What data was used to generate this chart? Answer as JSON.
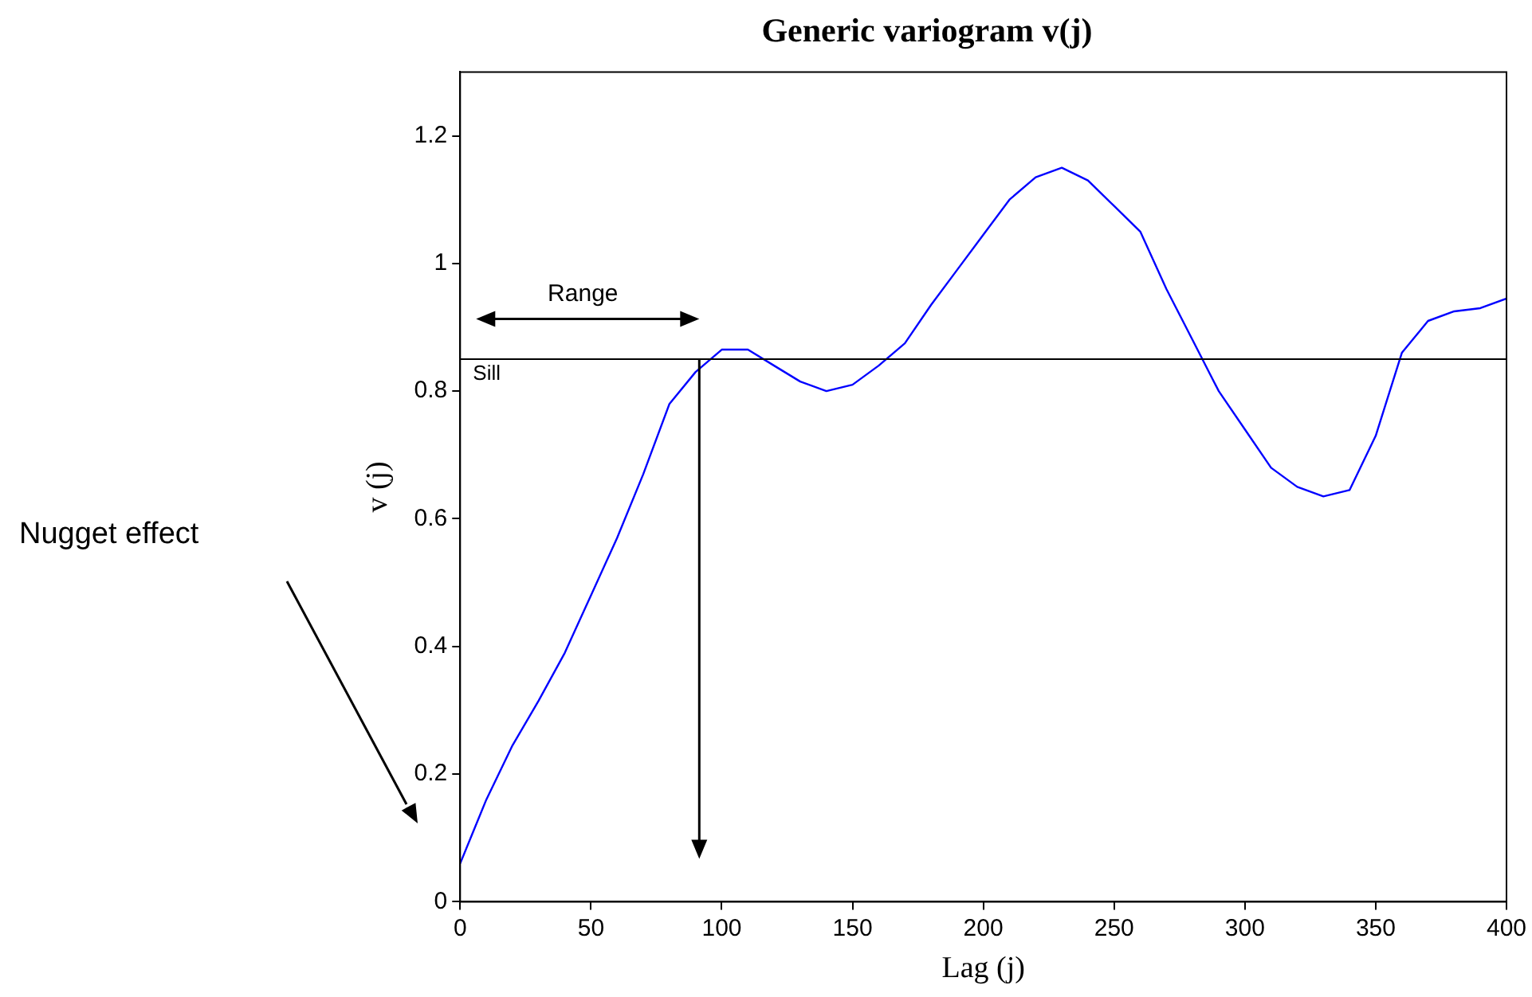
{
  "chart_data": {
    "type": "line",
    "title": "Generic variogram v(j)",
    "xlabel": "Lag (j)",
    "ylabel": "v (j)",
    "x": [
      0,
      5,
      10,
      20,
      30,
      40,
      50,
      60,
      70,
      80,
      90,
      100,
      110,
      120,
      130,
      140,
      150,
      160,
      170,
      180,
      190,
      200,
      210,
      220,
      230,
      240,
      250,
      260,
      270,
      280,
      290,
      300,
      310,
      320,
      330,
      340,
      350,
      360,
      370,
      380,
      390,
      400
    ],
    "series": [
      {
        "color": "#0000ff",
        "values": [
          0.06,
          0.11,
          0.16,
          0.245,
          0.315,
          0.39,
          0.48,
          0.57,
          0.67,
          0.78,
          0.83,
          0.865,
          0.865,
          0.84,
          0.815,
          0.8,
          0.81,
          0.84,
          0.875,
          0.935,
          0.99,
          1.045,
          1.1,
          1.135,
          1.15,
          1.13,
          1.09,
          1.05,
          0.96,
          0.88,
          0.8,
          0.74,
          0.68,
          0.65,
          0.635,
          0.645,
          0.73,
          0.86,
          0.91,
          0.925,
          0.93,
          0.945
        ]
      }
    ],
    "xlim": [
      0,
      400
    ],
    "xticks": [
      0,
      50,
      100,
      150,
      200,
      250,
      300,
      350,
      400
    ],
    "ylim": [
      0,
      1.3
    ],
    "yticks": [
      0,
      0.2,
      0.4,
      0.6,
      0.8,
      1,
      1.2
    ],
    "ref_lines": [
      {
        "axis": "y",
        "value": 0.85,
        "label": "Sill",
        "color": "#000000"
      }
    ],
    "annotations": [
      "Range",
      "Nugget effect"
    ],
    "grid": false,
    "legend": false,
    "marker": "none",
    "line_style": "solid"
  }
}
